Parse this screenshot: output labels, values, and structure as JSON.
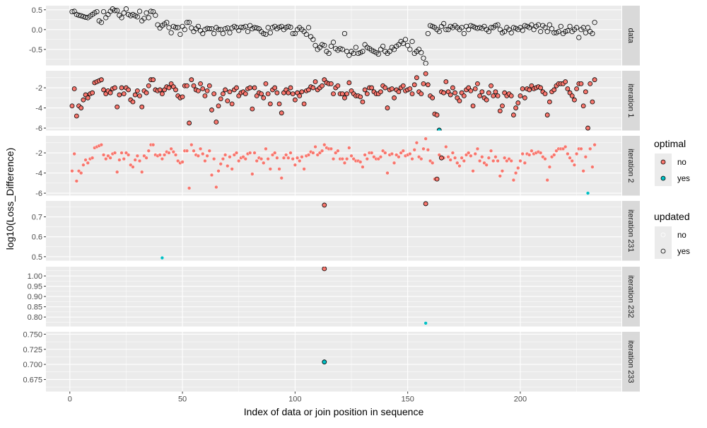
{
  "chart_data": {
    "type": "scatter",
    "faceted": true,
    "xlabel": "Index of data or join position in sequence",
    "ylabel": "log10(Loss_Difference)",
    "xlim": [
      -10.6,
      244.9
    ],
    "xticks": [
      {
        "v": 0,
        "label": "0"
      },
      {
        "v": 50,
        "label": "50"
      },
      {
        "v": 100,
        "label": "100"
      },
      {
        "v": 150,
        "label": "150"
      },
      {
        "v": 200,
        "label": "200"
      }
    ],
    "xminor": [
      25,
      75,
      125,
      175,
      225
    ],
    "colors": {
      "no": "#F8766D",
      "yes": "#00BFC4",
      "panel_bg": "#EBEBEB",
      "strip_bg": "#D9D9D9"
    },
    "legend": {
      "placement": "right",
      "optimal": {
        "title": "optimal",
        "items": [
          {
            "label": "no",
            "key": "no"
          },
          {
            "label": "yes",
            "key": "yes"
          }
        ]
      },
      "updated": {
        "title": "updated",
        "items": [
          {
            "label": "no",
            "key": "no"
          },
          {
            "label": "yes",
            "key": "yes"
          }
        ]
      }
    },
    "series": {
      "data_values": [
        0.45,
        0.46,
        0.38,
        0.36,
        0.35,
        0.33,
        0.31,
        0.3,
        0.34,
        0.38,
        0.42,
        0.45,
        0.22,
        0.18,
        0.45,
        0.3,
        0.38,
        0.46,
        0.52,
        0.48,
        0.48,
        0.36,
        0.3,
        0.42,
        0.52,
        0.38,
        0.35,
        0.38,
        0.35,
        0.32,
        0.46,
        0.22,
        0.28,
        0.42,
        0.3,
        0.46,
        0.45,
        0.36,
        0.12,
        0.04,
        0.1,
        0.14,
        0.18,
        0.05,
        -0.08,
        0.08,
        0.05,
        0.05,
        -0.12,
        0.08,
        0.0,
        0.18,
        0.18,
        0.04,
        -0.05,
        0.02,
        0.08,
        -0.03,
        -0.1,
        0.0,
        0.03,
        0.02,
        0.02,
        -0.1,
        0.05,
        0.0,
        0.0,
        -0.1,
        0.02,
        0.04,
        -0.08,
        0.04,
        0.08,
        0.05,
        -0.02,
        0.06,
        0.05,
        0.08,
        -0.05,
        0.1,
        0.02,
        0.05,
        0.04,
        0.02,
        -0.05,
        -0.1,
        -0.12,
        0.05,
        -0.08,
        0.05,
        0.08,
        0.02,
        0.06,
        0.08,
        0.0,
        0.05,
        0.08,
        0.06,
        -0.1,
        -0.1,
        0.0,
        0.05,
        0.0,
        -0.05,
        -0.12,
        0.05,
        -0.18,
        -0.25,
        -0.4,
        -0.5,
        -0.45,
        -0.38,
        -0.4,
        -0.55,
        -0.6,
        -0.42,
        -0.32,
        -0.48,
        -0.52,
        -0.48,
        -0.5,
        -0.1,
        -0.55,
        -0.65,
        -0.55,
        -0.6,
        -0.45,
        -0.6,
        -0.58,
        -0.55,
        -0.38,
        -0.45,
        -0.48,
        -0.52,
        -0.55,
        -0.58,
        -0.62,
        -0.5,
        -0.42,
        -0.55,
        -0.6,
        -0.55,
        -0.45,
        -0.5,
        -0.42,
        -0.38,
        -0.3,
        -0.35,
        -0.25,
        -0.4,
        -0.5,
        -0.3,
        -0.6,
        -0.55,
        -0.5,
        -0.58,
        -0.72,
        -0.85,
        -0.1,
        0.1,
        0.08,
        0.05,
        0.0,
        -0.05,
        0.08,
        0.15,
        0.0,
        0.0,
        0.08,
        0.05,
        0.1,
        0.05,
        0.0,
        0.05,
        -0.1,
        0.08,
        0.0,
        0.1,
        0.08,
        0.05,
        0.03,
        0.05,
        0.03,
        0.08,
        0.0,
        -0.05,
        0.05,
        0.05,
        0.1,
        0.12,
        0.0,
        -0.08,
        -0.05,
        0.05,
        0.0,
        -0.08,
        0.05,
        0.03,
        0.0,
        0.05,
        -0.02,
        0.1,
        0.08,
        0.05,
        0.12,
        0.0,
        0.08,
        0.12,
        -0.05,
        0.1,
        0.05,
        -0.05,
        0.12,
        0.02,
        -0.08,
        -0.08,
        -0.05,
        0.08,
        -0.1,
        -0.05,
        -0.03,
        0.08,
        -0.05,
        0.0,
        0.05,
        -0.2,
        0.0,
        0.05,
        -0.08,
        0.05,
        -0.05,
        -0.1,
        0.18
      ],
      "loss_values": [
        -3.8,
        -2.1,
        -4.8,
        -3.8,
        -4.0,
        -3.2,
        -2.7,
        -3.0,
        -2.6,
        -2.5,
        -1.5,
        -1.4,
        -1.3,
        -1.2,
        -2.2,
        -2.6,
        -2.3,
        -2.5,
        -2.1,
        -2.0,
        -3.9,
        -2.7,
        -2.0,
        -2.6,
        -2.0,
        -2.2,
        -3.2,
        -3.4,
        -2.7,
        -2.3,
        -2.8,
        -3.9,
        -2.3,
        -2.5,
        -1.8,
        -1.2,
        -1.2,
        -2.2,
        -2.3,
        -2.2,
        -2.6,
        -2.2,
        -1.9,
        -2.0,
        -1.6,
        -1.9,
        -2.2,
        -2.8,
        -3.0,
        -2.9,
        -1.8,
        -1.8,
        -5.5,
        -1.2,
        -1.8,
        -2.2,
        -2.3,
        -1.6,
        -2.1,
        -2.8,
        -2.3,
        -1.8,
        -4.2,
        -2.6,
        -5.4,
        -3.8,
        -3.1,
        -2.6,
        -2.2,
        -3.3,
        -2.4,
        -3.6,
        -2.2,
        -2.0,
        -2.8,
        -2.5,
        -2.4,
        -2.6,
        -2.1,
        -2.0,
        -4.1,
        -2.0,
        -2.8,
        -2.5,
        -2.6,
        -3.0,
        -1.6,
        -2.6,
        -3.6,
        -2.2,
        -2.0,
        -2.5,
        -3.6,
        -4.5,
        -2.5,
        -2.2,
        -2.5,
        -2.0,
        -2.6,
        -3.2,
        -2.5,
        -2.8,
        -2.4,
        -3.6,
        -2.3,
        -2.2,
        -1.9,
        -2.0,
        -1.4,
        -2.2,
        -2.0,
        -1.8,
        -1.2,
        -1.5,
        -1.6,
        -1.6,
        -2.6,
        -2.0,
        -1.8,
        -2.6,
        -2.6,
        -3.0,
        -2.6,
        -1.5,
        -2.3,
        -2.6,
        -2.8,
        -2.8,
        -2.9,
        -3.4,
        -2.2,
        -2.6,
        -2.0,
        -2.0,
        -2.4,
        -2.6,
        -2.6,
        -2.4,
        -1.8,
        -2.0,
        -4.0,
        -2.2,
        -2.1,
        -3.0,
        -2.2,
        -2.4,
        -2.0,
        -1.8,
        -2.3,
        -2.2,
        -2.1,
        -2.6,
        -1.7,
        -1.0,
        -2.4,
        -2.6,
        -1.6,
        -0.6,
        -1.7,
        -2.8,
        -3.0,
        -4.6,
        -4.7,
        -2.2,
        -2.4,
        -2.5,
        -1.4,
        -2.4,
        -2.7,
        -2.0,
        -2.5,
        -3.0,
        -3.3,
        -2.5,
        -2.8,
        -2.2,
        -2.0,
        -2.3,
        -3.8,
        -2.1,
        -1.6,
        -2.8,
        -2.4,
        -3.0,
        -3.2,
        -2.5,
        -1.8,
        -2.8,
        -2.4,
        -2.8,
        -4.3,
        -3.8,
        -2.5,
        -2.8,
        -2.6,
        -2.8,
        -4.7,
        -4.0,
        -3.5,
        -2.8,
        -2.1,
        -3.0,
        -2.1,
        -2.2,
        -1.8,
        -2.1,
        -2.0,
        -1.9,
        -2.0,
        -2.4,
        -2.6,
        -4.7,
        -3.4,
        -2.4,
        -2.2,
        -1.8,
        -1.6,
        -1.6,
        -1.6,
        -1.4,
        -2.1,
        -2.5,
        -2.8,
        -3.2,
        -2.1,
        -1.6,
        -1.6,
        -3.8,
        -2.4,
        -6.0,
        -1.6,
        -3.4,
        -1.2
      ]
    },
    "panels": [
      {
        "strip": "data",
        "ylim": [
          -0.904,
          0.603
        ],
        "yticks": [
          {
            "v": 0.5,
            "label": "0.5"
          },
          {
            "v": 0.0,
            "label": "0.0"
          },
          {
            "v": -0.5,
            "label": "-0.5"
          }
        ],
        "yminor": [
          0.25,
          -0.25,
          -0.75
        ],
        "base": "data_values",
        "base_optimal": null,
        "base_updated": "yes",
        "overrides": []
      },
      {
        "strip": "iteration 1",
        "ylim": [
          -6.24,
          -0.31
        ],
        "yticks": [
          {
            "v": -2,
            "label": "-2"
          },
          {
            "v": -4,
            "label": "-4"
          },
          {
            "v": -6,
            "label": "-6"
          }
        ],
        "yminor": [
          -1,
          -3,
          -5
        ],
        "base": "loss_values",
        "base_optimal": "no",
        "base_updated": "yes",
        "overrides": [
          {
            "x": 164,
            "y": -6.2,
            "optimal": "yes",
            "updated": "yes"
          }
        ]
      },
      {
        "strip": "iteration 2",
        "ylim": [
          -6.24,
          -0.31
        ],
        "yticks": [
          {
            "v": -2,
            "label": "-2"
          },
          {
            "v": -4,
            "label": "-4"
          },
          {
            "v": -6,
            "label": "-6"
          }
        ],
        "yminor": [
          -1,
          -3,
          -5
        ],
        "base": "loss_values",
        "base_optimal": "no",
        "base_updated": "no",
        "overrides": [
          {
            "x": 163,
            "y": -4.6,
            "optimal": "no",
            "updated": "yes"
          },
          {
            "x": 165,
            "y": -2.5,
            "optimal": "no",
            "updated": "yes"
          },
          {
            "x": 230,
            "y": -6.0,
            "optimal": "yes",
            "updated": "no"
          }
        ]
      },
      {
        "strip": "iteration 231",
        "ylim": [
          0.48,
          0.78
        ],
        "yticks": [
          {
            "v": 0.7,
            "label": "0.7"
          },
          {
            "v": 0.6,
            "label": "0.6"
          },
          {
            "v": 0.5,
            "label": "0.5"
          }
        ],
        "yminor": [
          0.75,
          0.65,
          0.55
        ],
        "base": null,
        "points": [
          {
            "x": 41,
            "y": 0.494,
            "optimal": "yes",
            "updated": "no"
          },
          {
            "x": 113,
            "y": 0.759,
            "optimal": "no",
            "updated": "yes"
          },
          {
            "x": 158,
            "y": 0.766,
            "optimal": "no",
            "updated": "yes"
          }
        ]
      },
      {
        "strip": "iteration 232",
        "ylim": [
          0.754,
          1.045
        ],
        "yticks": [
          {
            "v": 1.0,
            "label": "1.00"
          },
          {
            "v": 0.95,
            "label": "0.95"
          },
          {
            "v": 0.9,
            "label": "0.90"
          },
          {
            "v": 0.85,
            "label": "0.85"
          },
          {
            "v": 0.8,
            "label": "0.80"
          }
        ],
        "yminor": [
          1.025,
          0.975,
          0.925,
          0.875,
          0.825,
          0.775
        ],
        "base": null,
        "points": [
          {
            "x": 113,
            "y": 1.035,
            "optimal": "no",
            "updated": "yes"
          },
          {
            "x": 158,
            "y": 0.77,
            "optimal": "yes",
            "updated": "no"
          }
        ]
      },
      {
        "strip": "iteration 233",
        "ylim": [
          0.655,
          0.754
        ],
        "yticks": [
          {
            "v": 0.75,
            "label": "0.750"
          },
          {
            "v": 0.725,
            "label": "0.725"
          },
          {
            "v": 0.7,
            "label": "0.700"
          },
          {
            "v": 0.675,
            "label": "0.675"
          }
        ],
        "yminor": [
          0.7375,
          0.7125,
          0.6875,
          0.6625
        ],
        "base": null,
        "points": [
          {
            "x": 113,
            "y": 0.704,
            "optimal": "yes",
            "updated": "yes"
          }
        ]
      }
    ]
  }
}
